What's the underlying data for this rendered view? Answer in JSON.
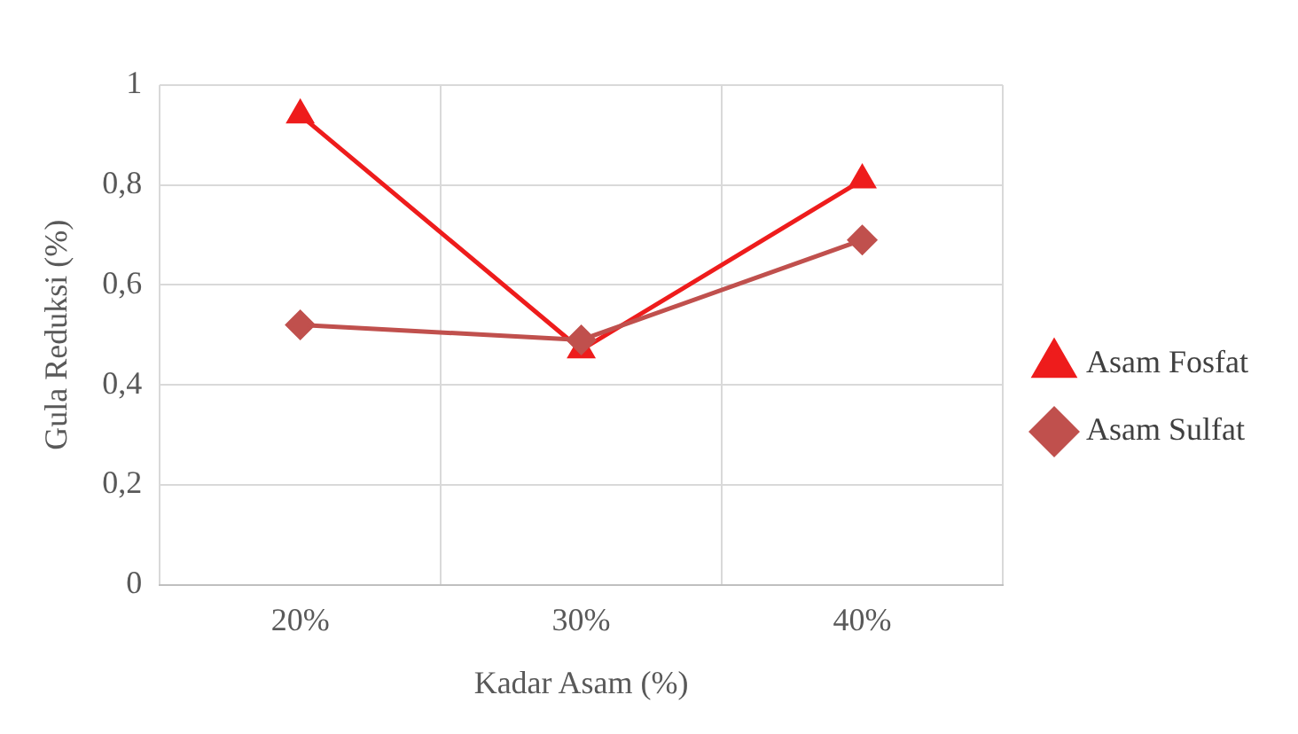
{
  "chart_data": {
    "type": "line",
    "xlabel": "Kadar Asam (%)",
    "ylabel": "Gula Reduksi (%)",
    "categories": [
      "20%",
      "30%",
      "40%"
    ],
    "series": [
      {
        "name": "Asam Fosfat",
        "color": "#ee1c1c",
        "marker": "triangle",
        "values": [
          0.94,
          0.47,
          0.81
        ]
      },
      {
        "name": "Asam Sulfat",
        "color": "#c0504d",
        "marker": "diamond",
        "values": [
          0.52,
          0.49,
          0.69
        ]
      }
    ],
    "ylim": [
      0,
      1
    ],
    "yticks": [
      0,
      {
        "value": 0.2,
        "label": "0,2"
      },
      {
        "value": 0.4,
        "label": "0,4"
      },
      {
        "value": 0.6,
        "label": "0,6"
      },
      {
        "value": 0.8,
        "label": "0,8"
      },
      1
    ],
    "grid": true,
    "legend": "right"
  }
}
